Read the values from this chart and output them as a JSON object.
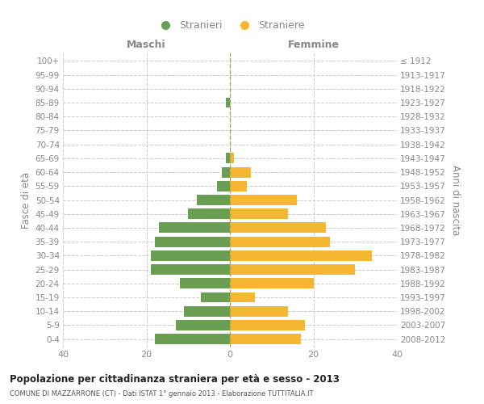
{
  "age_groups": [
    "100+",
    "95-99",
    "90-94",
    "85-89",
    "80-84",
    "75-79",
    "70-74",
    "65-69",
    "60-64",
    "55-59",
    "50-54",
    "45-49",
    "40-44",
    "35-39",
    "30-34",
    "25-29",
    "20-24",
    "15-19",
    "10-14",
    "5-9",
    "0-4"
  ],
  "birth_years": [
    "≤ 1912",
    "1913-1917",
    "1918-1922",
    "1923-1927",
    "1928-1932",
    "1933-1937",
    "1938-1942",
    "1943-1947",
    "1948-1952",
    "1953-1957",
    "1958-1962",
    "1963-1967",
    "1968-1972",
    "1973-1977",
    "1978-1982",
    "1983-1987",
    "1988-1992",
    "1993-1997",
    "1998-2002",
    "2003-2007",
    "2008-2012"
  ],
  "maschi": [
    0,
    0,
    0,
    1,
    0,
    0,
    0,
    1,
    2,
    3,
    8,
    10,
    17,
    18,
    19,
    19,
    12,
    7,
    11,
    13,
    18
  ],
  "femmine": [
    0,
    0,
    0,
    0,
    0,
    0,
    0,
    1,
    5,
    4,
    16,
    14,
    23,
    24,
    34,
    30,
    20,
    6,
    14,
    18,
    17
  ],
  "maschi_color": "#6a9e52",
  "femmine_color": "#f5b731",
  "bar_height": 0.75,
  "xlim": 40,
  "title": "Popolazione per cittadinanza straniera per età e sesso - 2013",
  "subtitle": "COMUNE DI MAZZARRONE (CT) - Dati ISTAT 1° gennaio 2013 - Elaborazione TUTTITALIA.IT",
  "ylabel_left": "Fasce di età",
  "ylabel_right": "Anni di nascita",
  "header_left": "Maschi",
  "header_right": "Femmine",
  "legend_maschi": "Stranieri",
  "legend_femmine": "Straniere",
  "bg_color": "#ffffff",
  "grid_color": "#cccccc",
  "axis_label_color": "#888888",
  "tick_label_color": "#888888",
  "title_color": "#222222",
  "subtitle_color": "#555555"
}
